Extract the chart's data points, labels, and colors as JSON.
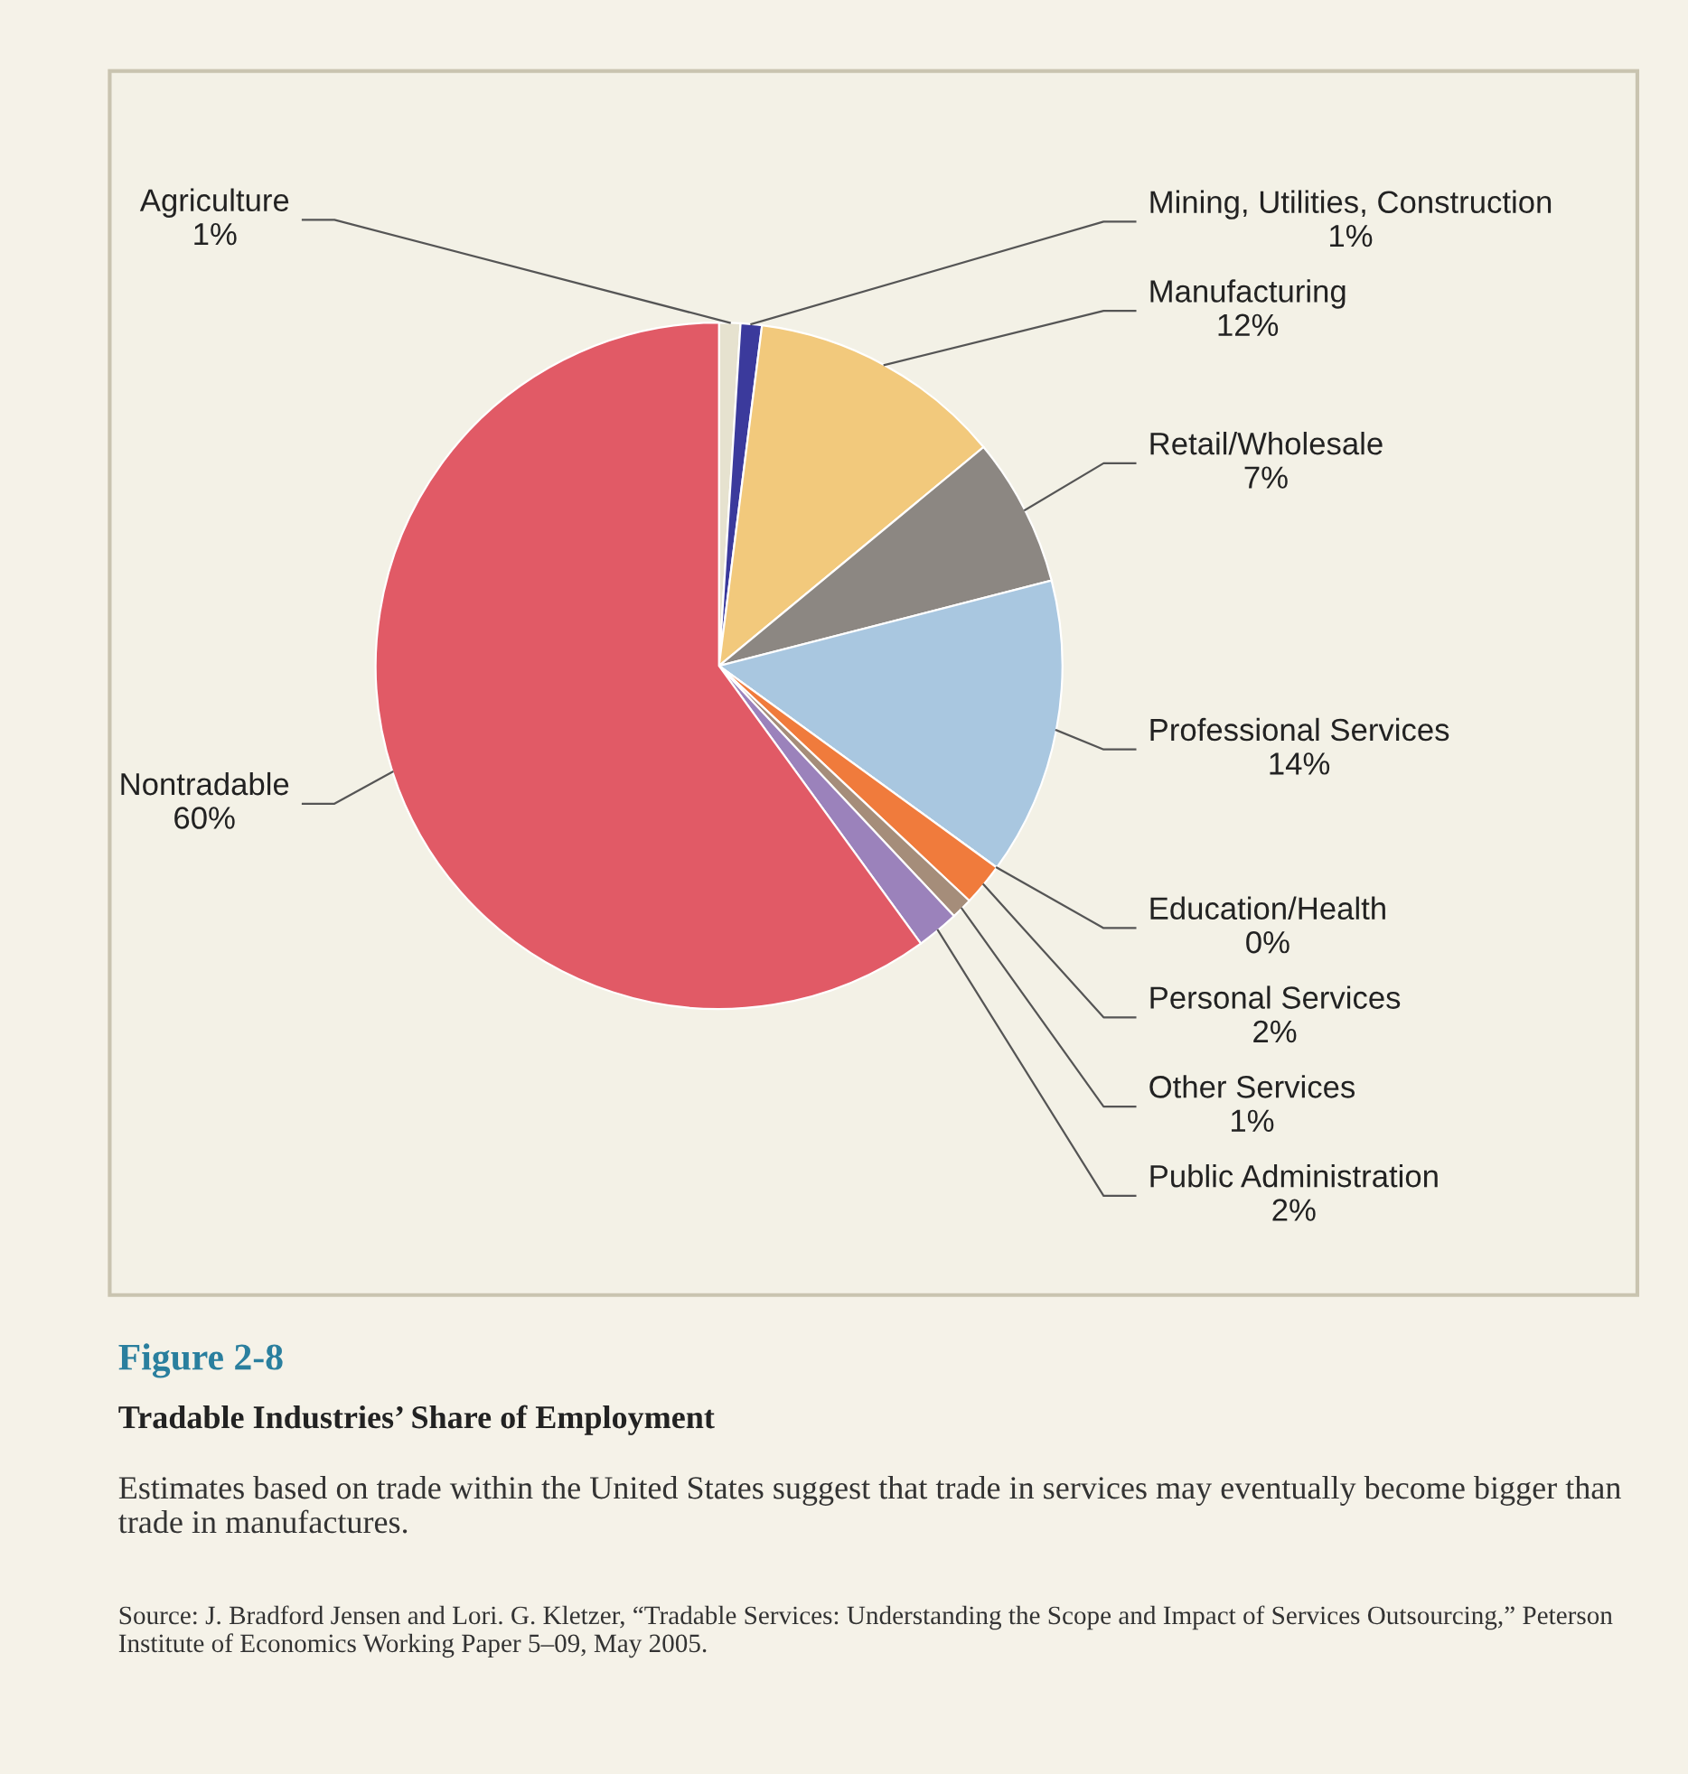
{
  "chart_data": {
    "type": "pie",
    "title": "Tradable Industries’ Share of Employment",
    "subtitle": "Estimates based on trade within the United States suggest that trade in services may eventually become bigger than trade in manufactures.",
    "categories": [
      "Agriculture",
      "Mining, Utilities, Construction",
      "Manufacturing",
      "Retail/Wholesale",
      "Professional Services",
      "Education/Health",
      "Personal Services",
      "Other Services",
      "Public Administration",
      "Nontradable"
    ],
    "values": [
      1,
      1,
      12,
      7,
      14,
      0,
      2,
      1,
      2,
      60
    ],
    "value_labels": [
      "1%",
      "1%",
      "12%",
      "7%",
      "14%",
      "0%",
      "2%",
      "1%",
      "2%",
      "60%"
    ],
    "colors": [
      "#e6e2cf",
      "#3b3a9c",
      "#f2c97c",
      "#8c8782",
      "#a9c7e0",
      "#d9d3c0",
      "#f07b3c",
      "#a58d7a",
      "#9b82bb",
      "#e15a66"
    ],
    "annotations": [
      "Figure 2-8",
      "Source: J. Bradford Jensen and Lori. G. Kletzer, “Tradable Services: Understanding the Scope and Impact of Services Outsourcing,” Peterson Institute of Economics Working Paper 5–09, May 2005."
    ]
  }
}
